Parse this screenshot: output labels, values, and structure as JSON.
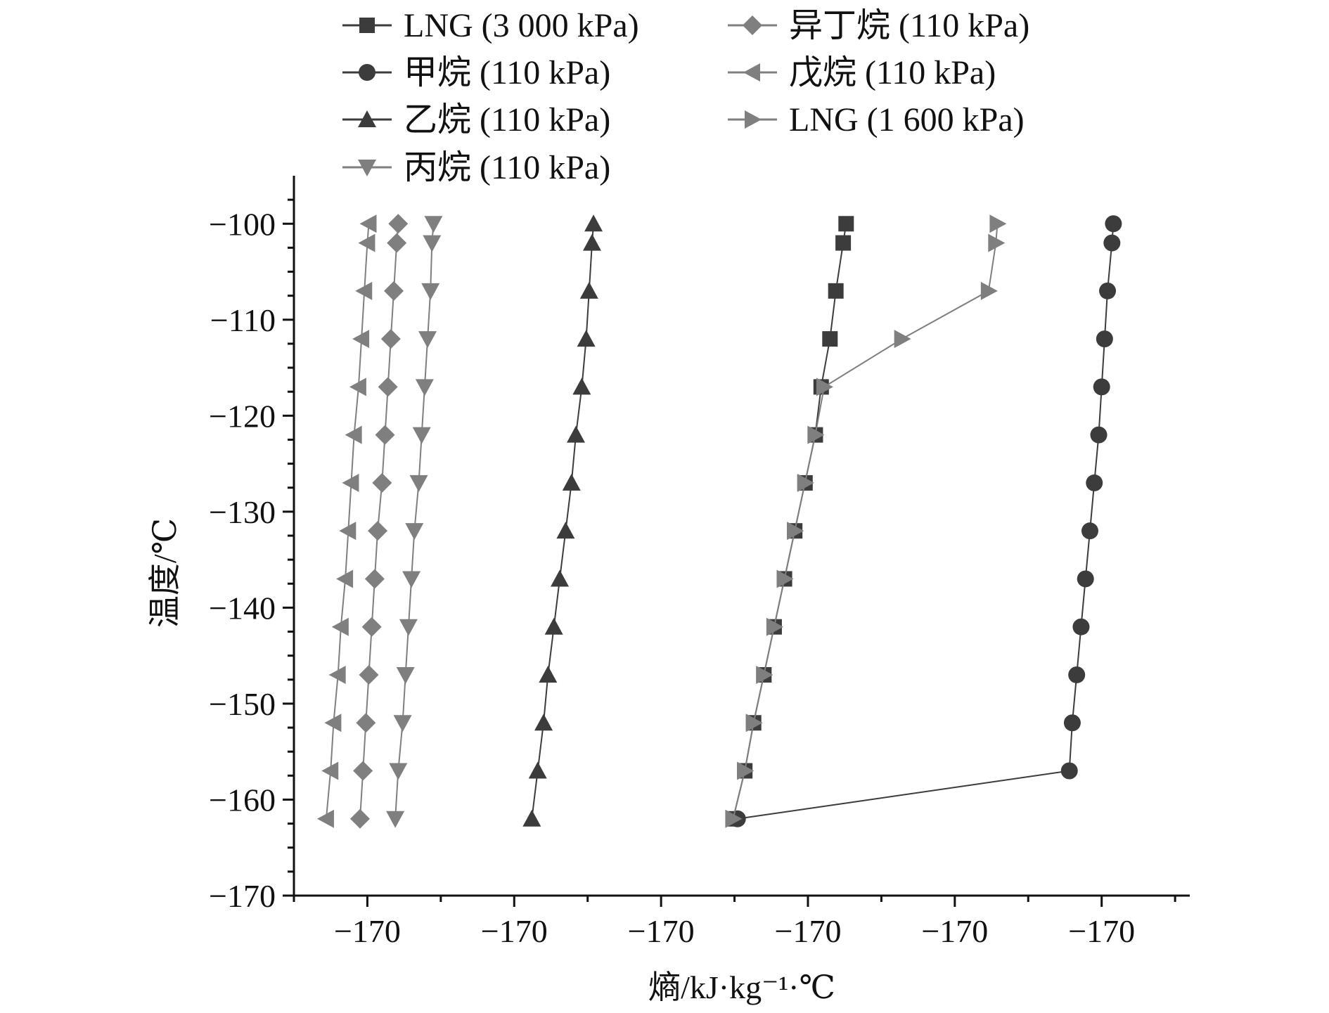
{
  "chart_data": {
    "type": "line",
    "xlabel": "熵/kJ·kg⁻¹·℃",
    "ylabel": "温度/℃",
    "xlim": [
      0.0,
      6.1
    ],
    "ylim": [
      -170,
      -95
    ],
    "x_tick_labels": [
      "−170",
      "−170",
      "−170",
      "−170",
      "−170",
      "−170"
    ],
    "x_tick_positions": [
      0.5,
      1.5,
      2.5,
      3.5,
      4.5,
      5.5
    ],
    "y_ticks": [
      -100,
      -110,
      -120,
      -130,
      -140,
      -150,
      -160,
      -170
    ],
    "y_tick_labels": [
      "−100",
      "−110",
      "−120",
      "−130",
      "−140",
      "−150",
      "−160",
      "−170"
    ],
    "grid": false,
    "legend_position": "top",
    "colors": {
      "dark": "#3c3c3c",
      "gray": "#7f7f7f"
    },
    "series": [
      {
        "name": "LNG (3 000 kPa)",
        "marker": "square",
        "color": "#3c3c3c",
        "x": [
          3.76,
          3.74,
          3.69,
          3.65,
          3.59,
          3.55,
          3.48,
          3.41,
          3.34,
          3.27,
          3.2,
          3.13,
          3.07,
          2.99
        ],
        "y": [
          -100,
          -102,
          -107,
          -112,
          -117,
          -122,
          -127,
          -132,
          -137,
          -142,
          -147,
          -152,
          -157,
          -162
        ]
      },
      {
        "name": "甲烷 (110 kPa)",
        "marker": "circle",
        "color": "#3c3c3c",
        "x": [
          5.58,
          5.57,
          5.54,
          5.52,
          5.5,
          5.48,
          5.45,
          5.42,
          5.39,
          5.36,
          5.33,
          5.3,
          5.28,
          3.02
        ],
        "y": [
          -100,
          -102,
          -107,
          -112,
          -117,
          -122,
          -127,
          -132,
          -137,
          -142,
          -147,
          -152,
          -157,
          -162
        ]
      },
      {
        "name": "乙烷 (110 kPa)",
        "marker": "triangle-up",
        "color": "#3c3c3c",
        "x": [
          2.04,
          2.03,
          2.01,
          1.99,
          1.96,
          1.92,
          1.89,
          1.85,
          1.81,
          1.77,
          1.73,
          1.7,
          1.66,
          1.62
        ],
        "y": [
          -100,
          -102,
          -107,
          -112,
          -117,
          -122,
          -127,
          -132,
          -137,
          -142,
          -147,
          -152,
          -157,
          -162
        ]
      },
      {
        "name": "丙烷 (110 kPa)",
        "marker": "triangle-down",
        "color": "#7f7f7f",
        "x": [
          0.95,
          0.94,
          0.93,
          0.91,
          0.89,
          0.87,
          0.85,
          0.82,
          0.8,
          0.78,
          0.76,
          0.74,
          0.71,
          0.69
        ],
        "y": [
          -100,
          -102,
          -107,
          -112,
          -117,
          -122,
          -127,
          -132,
          -137,
          -142,
          -147,
          -152,
          -157,
          -162
        ]
      },
      {
        "name": "异丁烷 (110 kPa)",
        "marker": "diamond",
        "color": "#7f7f7f",
        "x": [
          0.71,
          0.7,
          0.68,
          0.66,
          0.64,
          0.62,
          0.6,
          0.57,
          0.55,
          0.53,
          0.51,
          0.49,
          0.47,
          0.45
        ],
        "y": [
          -100,
          -102,
          -107,
          -112,
          -117,
          -122,
          -127,
          -132,
          -137,
          -142,
          -147,
          -152,
          -157,
          -162
        ]
      },
      {
        "name": "戊烷 (110 kPa)",
        "marker": "triangle-left",
        "color": "#7f7f7f",
        "x": [
          0.51,
          0.5,
          0.48,
          0.46,
          0.44,
          0.41,
          0.39,
          0.37,
          0.35,
          0.32,
          0.3,
          0.27,
          0.25,
          0.22
        ],
        "y": [
          -100,
          -102,
          -107,
          -112,
          -117,
          -122,
          -127,
          -132,
          -137,
          -142,
          -147,
          -152,
          -157,
          -162
        ]
      },
      {
        "name": "LNG (1 600 kPa)",
        "marker": "triangle-right",
        "color": "#7f7f7f",
        "x": [
          4.79,
          4.78,
          4.73,
          4.14,
          3.61,
          3.55,
          3.48,
          3.41,
          3.34,
          3.27,
          3.2,
          3.13,
          3.07,
          2.99
        ],
        "y": [
          -100,
          -102,
          -107,
          -112,
          -117,
          -122,
          -127,
          -132,
          -137,
          -142,
          -147,
          -152,
          -157,
          -162
        ]
      }
    ]
  }
}
